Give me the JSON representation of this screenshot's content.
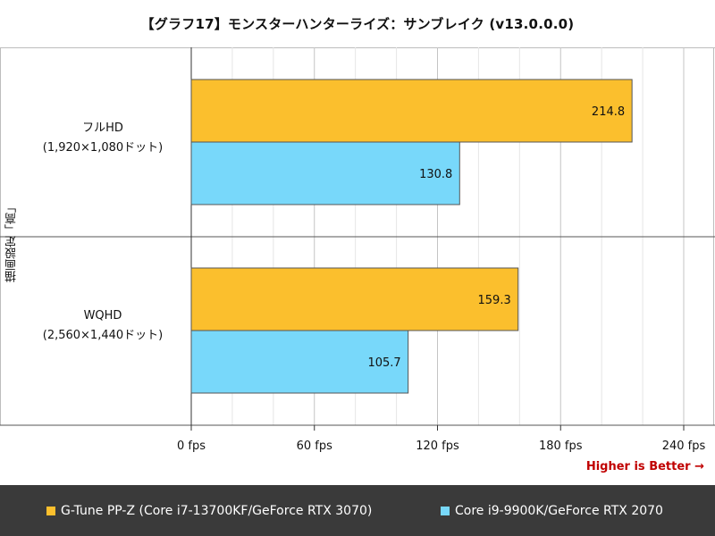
{
  "chart_data": {
    "type": "bar",
    "orientation": "horizontal",
    "title": "【グラフ17】モンスターハンターライズ：サンブレイク (v13.0.0.0)",
    "ylabel": "描画設定「高」",
    "categories": [
      {
        "line1": "フルHD",
        "line2": "(1,920×1,080ドット)"
      },
      {
        "line1": "WQHD",
        "line2": "(2,560×1,440ドット)"
      }
    ],
    "series": [
      {
        "name": "G-Tune PP-Z (Core i7-13700KF/GeForce RTX 3070)",
        "color": "#fbbf2d",
        "values": [
          214.8,
          159.3
        ],
        "labels": [
          "214.8",
          "159.3"
        ]
      },
      {
        "name": "Core i9-9900K/GeForce RTX 2070",
        "color": "#78d8fa",
        "values": [
          130.8,
          105.7
        ],
        "labels": [
          "130.8",
          "105.7"
        ]
      }
    ],
    "xlim": [
      0,
      240
    ],
    "xticks": [
      0,
      60,
      120,
      180,
      240
    ],
    "xtick_labels": [
      "0 fps",
      "60 fps",
      "120 fps",
      "180 fps",
      "240 fps"
    ],
    "grid": true,
    "legend_position": "bottom",
    "annotation": "Higher is Better →"
  }
}
